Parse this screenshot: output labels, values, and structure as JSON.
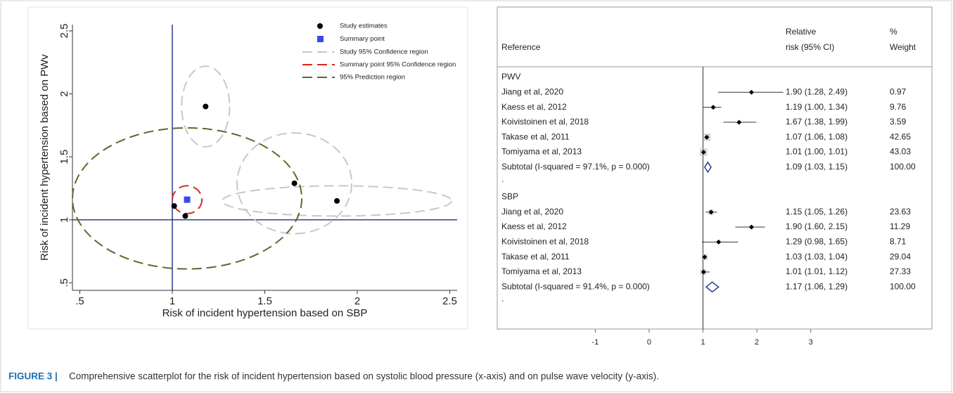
{
  "chart_data": [
    {
      "type": "scatter",
      "xlabel": "Risk of incident hypertension based on SBP",
      "ylabel": "Risk of incident hypertension based on PWv",
      "xlim": [
        0.46,
        2.54
      ],
      "ylim": [
        0.44,
        2.55
      ],
      "xticks": [
        {
          "value": 0.5,
          "label": ".5"
        },
        1,
        1.5,
        2,
        2.5
      ],
      "yticks": [
        {
          "value": 0.5,
          "label": ".5"
        },
        1,
        1.5,
        2,
        2.5
      ],
      "reference_lines": {
        "x": 1,
        "y": 1,
        "color": "#2b3a8c"
      },
      "series": [
        {
          "name": "Study estimates",
          "color": "#000000",
          "marker": "circle",
          "x": [
            1.01,
            1.07,
            1.18,
            1.66,
            1.89
          ],
          "values": [
            1.11,
            1.03,
            1.9,
            1.29,
            1.15
          ]
        },
        {
          "name": "Summary point",
          "color": "#3a48f0",
          "marker": "square",
          "x": [
            1.08
          ],
          "values": [
            1.16
          ]
        }
      ],
      "regions": [
        {
          "name": "Study 95% Confidence region",
          "color": "#c8c8c8",
          "ellipses": [
            {
              "cx": 1.18,
              "cy": 1.9,
              "rx": 0.13,
              "ry": 0.32
            },
            {
              "cx": 1.66,
              "cy": 1.29,
              "rx": 0.31,
              "ry": 0.4
            },
            {
              "cx": 1.89,
              "cy": 1.15,
              "rx": 0.62,
              "ry": 0.12
            }
          ]
        },
        {
          "name": "Summary point 95% Confidence region",
          "color": "#d8281c",
          "ellipses": [
            {
              "cx": 1.08,
              "cy": 1.16,
              "rx": 0.08,
              "ry": 0.11
            }
          ]
        },
        {
          "name": "95% Prediction region",
          "color": "#5a6a2a",
          "ellipses": [
            {
              "cx": 1.08,
              "cy": 1.17,
              "rx": 0.62,
              "ry": 0.56
            }
          ]
        }
      ]
    },
    {
      "type": "forest",
      "columns": {
        "reference": "Reference",
        "rr": [
          "Relative",
          "risk (95% CI)"
        ],
        "weight": [
          "%",
          "Weight"
        ]
      },
      "xlim": [
        -2.82,
        5.25
      ],
      "xticks": [
        -1,
        0,
        1,
        2,
        3
      ],
      "null_line": 1,
      "groups": [
        {
          "name": "PWV",
          "studies": [
            {
              "label": "Jiang et al, 2020",
              "rr": 1.9,
              "lo": 1.28,
              "hi": 2.49,
              "text": "1.90 (1.28, 2.49)",
              "weight": 0.97,
              "weight_label": "0.97"
            },
            {
              "label": "Kaess et al, 2012",
              "rr": 1.19,
              "lo": 1.0,
              "hi": 1.34,
              "text": "1.19 (1.00, 1.34)",
              "weight": 9.76,
              "weight_label": "9.76"
            },
            {
              "label": "Koivistoinen et al, 2018",
              "rr": 1.67,
              "lo": 1.38,
              "hi": 1.99,
              "text": "1.67 (1.38, 1.99)",
              "weight": 3.59,
              "weight_label": "3.59"
            },
            {
              "label": "Takase et al, 2011",
              "rr": 1.07,
              "lo": 1.06,
              "hi": 1.08,
              "text": "1.07 (1.06, 1.08)",
              "weight": 42.65,
              "weight_label": "42.65"
            },
            {
              "label": "Tomiyama et al, 2013",
              "rr": 1.01,
              "lo": 1.0,
              "hi": 1.01,
              "text": "1.01 (1.00, 1.01)",
              "weight": 43.03,
              "weight_label": "43.03"
            }
          ],
          "subtotal": {
            "label": "Subtotal  (I-squared = 97.1%, p = 0.000)",
            "rr": 1.09,
            "lo": 1.03,
            "hi": 1.15,
            "text": "1.09 (1.03, 1.15)",
            "weight_label": "100.00"
          },
          "note": "."
        },
        {
          "name": "SBP",
          "studies": [
            {
              "label": "Jiang et al, 2020",
              "rr": 1.15,
              "lo": 1.05,
              "hi": 1.26,
              "text": "1.15 (1.05, 1.26)",
              "weight": 23.63,
              "weight_label": "23.63"
            },
            {
              "label": "Kaess et al, 2012",
              "rr": 1.9,
              "lo": 1.6,
              "hi": 2.15,
              "text": "1.90 (1.60, 2.15)",
              "weight": 11.29,
              "weight_label": "11.29"
            },
            {
              "label": "Koivistoinen et al, 2018",
              "rr": 1.29,
              "lo": 0.98,
              "hi": 1.65,
              "text": "1.29 (0.98, 1.65)",
              "weight": 8.71,
              "weight_label": "8.71"
            },
            {
              "label": "Takase et al, 2011",
              "rr": 1.03,
              "lo": 1.03,
              "hi": 1.04,
              "text": "1.03 (1.03, 1.04)",
              "weight": 29.04,
              "weight_label": "29.04"
            },
            {
              "label": "Tomiyama et al, 2013",
              "rr": 1.01,
              "lo": 1.01,
              "hi": 1.12,
              "text": "1.01 (1.01, 1.12)",
              "weight": 27.33,
              "weight_label": "27.33"
            }
          ],
          "subtotal": {
            "label": "Subtotal  (I-squared = 91.4%, p = 0.000)",
            "rr": 1.17,
            "lo": 1.06,
            "hi": 1.29,
            "text": "1.17 (1.06, 1.29)",
            "weight_label": "100.00"
          },
          "note": "."
        }
      ]
    }
  ],
  "caption": {
    "label": "FIGURE 3 |",
    "text": "Comprehensive scatterplot for the risk of incident hypertension based on systolic blood pressure (x-axis) and on pulse wave velocity (y-axis)."
  }
}
